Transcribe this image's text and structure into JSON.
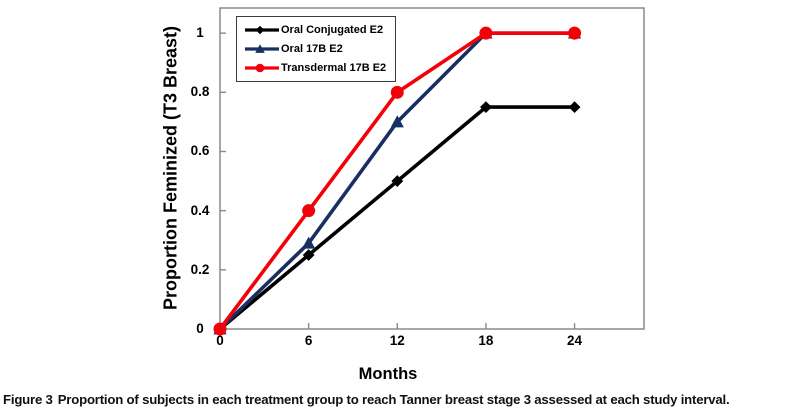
{
  "figure": {
    "caption_label": "Figure 3",
    "caption_text": "Proportion of subjects in each treatment group to reach Tanner breast stage 3 assessed at each study interval."
  },
  "chart_data": {
    "type": "line",
    "title": "",
    "xlabel": "Months",
    "ylabel": "Proportion Feminized (T3 Breast)",
    "x": [
      0,
      6,
      12,
      18,
      24
    ],
    "x_tick_labels": [
      "0",
      "6",
      "12",
      "18",
      "24"
    ],
    "y_tick_values": [
      0,
      0.2,
      0.4,
      0.6,
      0.8,
      1
    ],
    "y_tick_labels": [
      "0",
      "0.2",
      "0.4",
      "0.6",
      "0.8",
      "1"
    ],
    "xlim": [
      0,
      28.7
    ],
    "ylim": [
      0,
      1.085
    ],
    "grid": false,
    "legend_position": "top-left-inside",
    "axis_color": "#8a8a8a",
    "series": [
      {
        "name": "Oral Conjugated E2",
        "color": "#000000",
        "marker": "diamond",
        "values": [
          0,
          0.25,
          0.5,
          0.75,
          0.75
        ]
      },
      {
        "name": "Oral 17B E2",
        "color": "#172F63",
        "marker": "triangle",
        "values": [
          0,
          0.29,
          0.7,
          1,
          1
        ]
      },
      {
        "name": "Transdermal 17B E2",
        "color": "#F40008",
        "marker": "circle",
        "values": [
          0,
          0.4,
          0.8,
          1,
          1
        ]
      }
    ]
  }
}
